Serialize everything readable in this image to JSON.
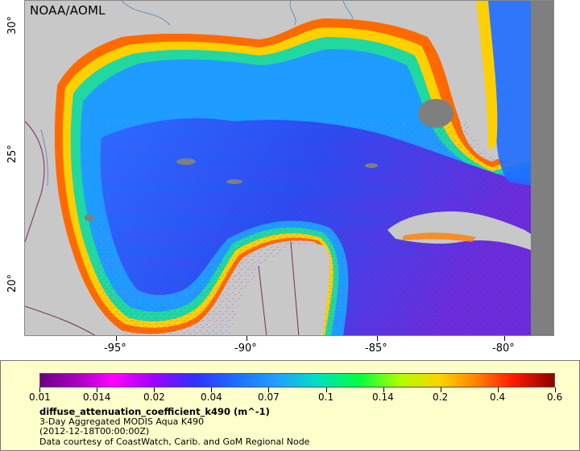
{
  "map": {
    "source_label": "NOAA/AOML",
    "colors": {
      "land": "#c8c8c8",
      "no_data": "#7f7f7f",
      "borders": "#7a2a5a",
      "rivers": "#6a8fb8"
    },
    "x_axis": {
      "ticks": [
        {
          "label": "-95°",
          "lon": -95
        },
        {
          "label": "-90°",
          "lon": -90
        },
        {
          "label": "-85°",
          "lon": -85
        },
        {
          "label": "-80°",
          "lon": -80
        }
      ]
    },
    "y_axis": {
      "ticks": [
        {
          "label": "30°",
          "lat": 30
        },
        {
          "label": "25°",
          "lat": 25
        },
        {
          "label": "20°",
          "lat": 20
        }
      ]
    }
  },
  "legend": {
    "colorbar_labels": [
      "0.01",
      "0.014",
      "0.02",
      "0.04",
      "0.07",
      "0.1",
      "0.14",
      "0.2",
      "0.4",
      "0.6"
    ],
    "title": "diffuse_attenuation_coefficient_k490 (m^-1)",
    "subtitle": "3-Day Aggregated MODIS Aqua K490",
    "date": "(2012-12-18T00:00:00Z)",
    "credit": "Data courtesy of CoastWatch, Carib. and GoM Regional Node"
  }
}
